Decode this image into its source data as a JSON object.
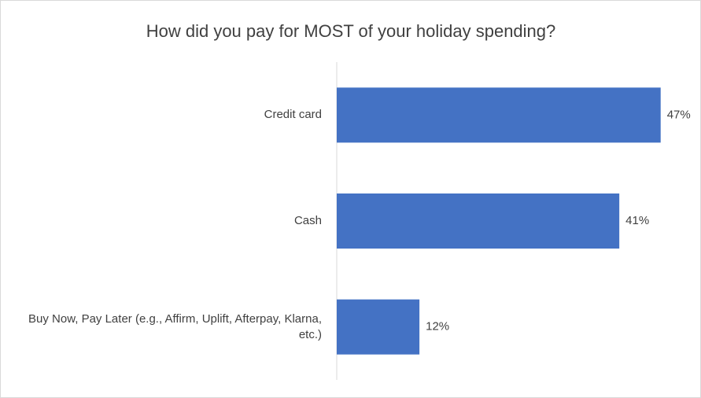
{
  "chart_data": {
    "type": "bar",
    "orientation": "horizontal",
    "title": "How did you pay for MOST of your holiday spending?",
    "categories": [
      "Credit card",
      "Cash",
      "Buy Now, Pay Later (e.g., Affirm, Uplift, Afterpay, Klarna, etc.)"
    ],
    "values": [
      47,
      41,
      12
    ],
    "value_labels": [
      "47%",
      "41%",
      "12%"
    ],
    "color": "#4472c4",
    "xlim": [
      0,
      50
    ]
  }
}
